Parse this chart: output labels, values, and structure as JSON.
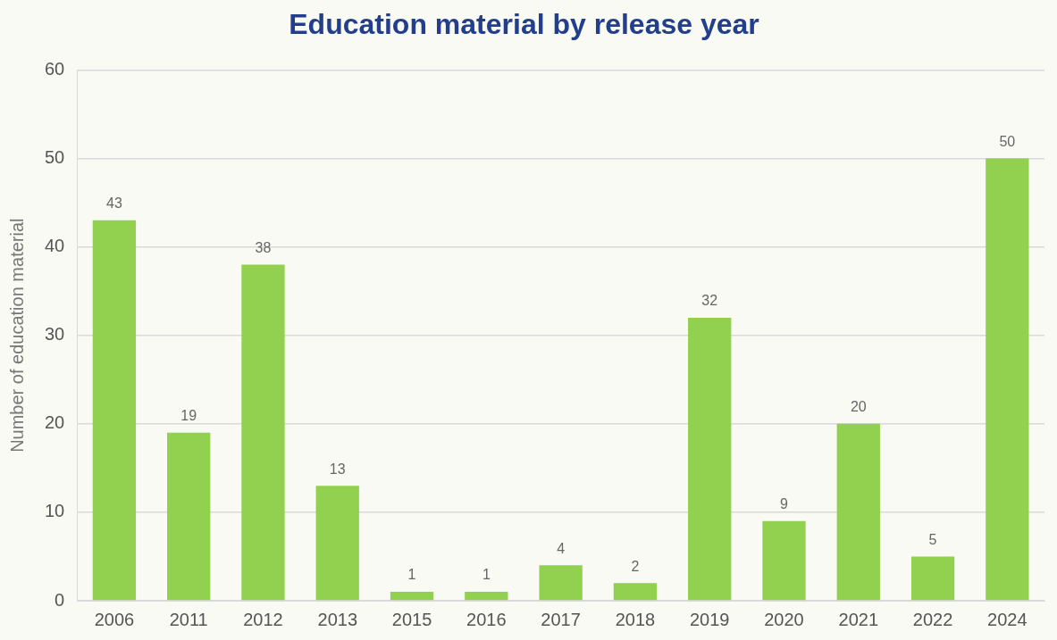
{
  "chart_data": {
    "type": "bar",
    "title": "Education material by release year",
    "ylabel": "Number of education material",
    "categories": [
      "2006",
      "2011",
      "2012",
      "2013",
      "2015",
      "2016",
      "2017",
      "2018",
      "2019",
      "2020",
      "2021",
      "2022",
      "2024"
    ],
    "values": [
      43,
      19,
      38,
      13,
      1,
      1,
      4,
      2,
      32,
      9,
      20,
      5,
      50
    ],
    "color": "#92d050",
    "ylim": [
      0,
      60
    ],
    "yticks": [
      0,
      10,
      20,
      30,
      40,
      50,
      60
    ],
    "grid": "y",
    "data_labels": true
  }
}
